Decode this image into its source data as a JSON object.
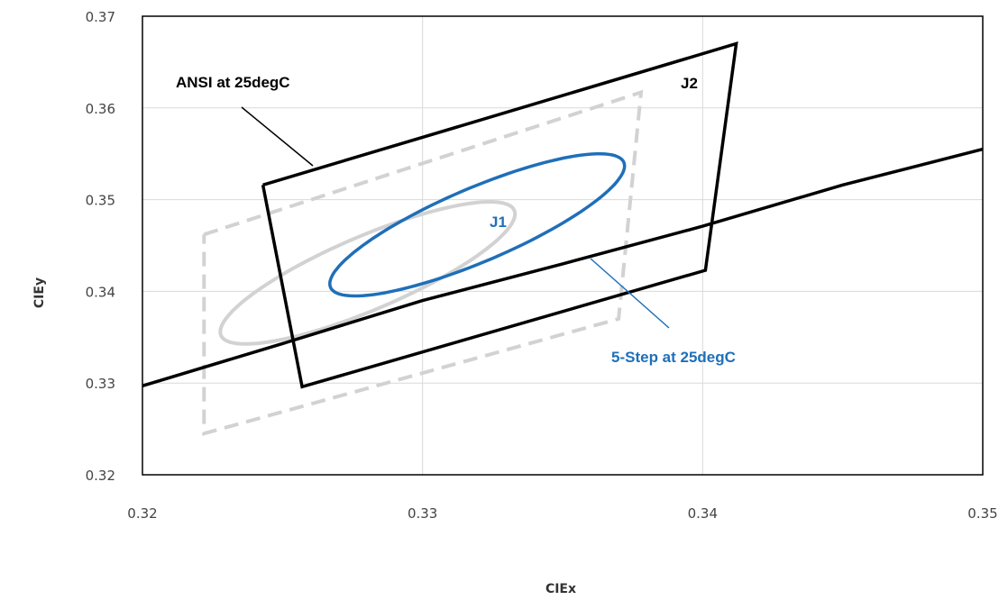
{
  "chart_data": {
    "type": "line",
    "title": "",
    "xlabel": "CIEx",
    "ylabel": "CIEy",
    "xlim": [
      0.32,
      0.35
    ],
    "ylim": [
      0.32,
      0.37
    ],
    "x_ticks": [
      "0.32",
      "0.33",
      "0.34",
      "0.35"
    ],
    "y_ticks": [
      "0.32",
      "0.33",
      "0.34",
      "0.35",
      "0.36",
      "0.37"
    ],
    "grid": true,
    "legend": "none",
    "colors": {
      "black": "#000000",
      "blue": "#1f6fb9",
      "grey": "#d2d2d2",
      "gridline": "#d9d9d9"
    },
    "series": [
      {
        "name": "ANSI at 25degC",
        "style": "solid",
        "color": "#000000",
        "x": [
          0.3243,
          0.3412,
          0.3401,
          0.3257,
          0.3243
        ],
        "y": [
          0.3516,
          0.367,
          0.3423,
          0.3296,
          0.3516
        ]
      },
      {
        "style": "dashed",
        "color": "#d2d2d2",
        "x": [
          0.3222,
          0.3378,
          0.337,
          0.3222,
          0.3222
        ],
        "y": [
          0.3462,
          0.3617,
          0.337,
          0.3245,
          0.3462
        ]
      },
      {
        "style": "solid",
        "color": "#000000",
        "x": [
          0.32,
          0.325,
          0.33,
          0.335,
          0.34,
          0.345,
          0.35
        ],
        "y": [
          0.3297,
          0.3343,
          0.339,
          0.343,
          0.3471,
          0.3516,
          0.3555
        ]
      },
      {
        "name": "5-Step at 25degC",
        "shape": "ellipse",
        "color": "#1f6fb9",
        "center": [
          0.33195,
          0.34725
        ],
        "semi_major": 0.00902,
        "semi_minor": 0.00253,
        "angle_deg": 57.8
      },
      {
        "shape": "ellipse",
        "color": "#d2d2d2",
        "center": [
          0.32804,
          0.34201
        ],
        "semi_major": 0.00902,
        "semi_minor": 0.00253,
        "angle_deg": 57.8
      }
    ],
    "annotations": [
      {
        "text": "ANSI at 25degC",
        "color": "#000000"
      },
      {
        "text": "J2",
        "color": "#000000"
      },
      {
        "text": "J1",
        "color": "#1f6fb9"
      },
      {
        "text": "5-Step at 25degC",
        "color": "#1f6fb9"
      }
    ]
  }
}
